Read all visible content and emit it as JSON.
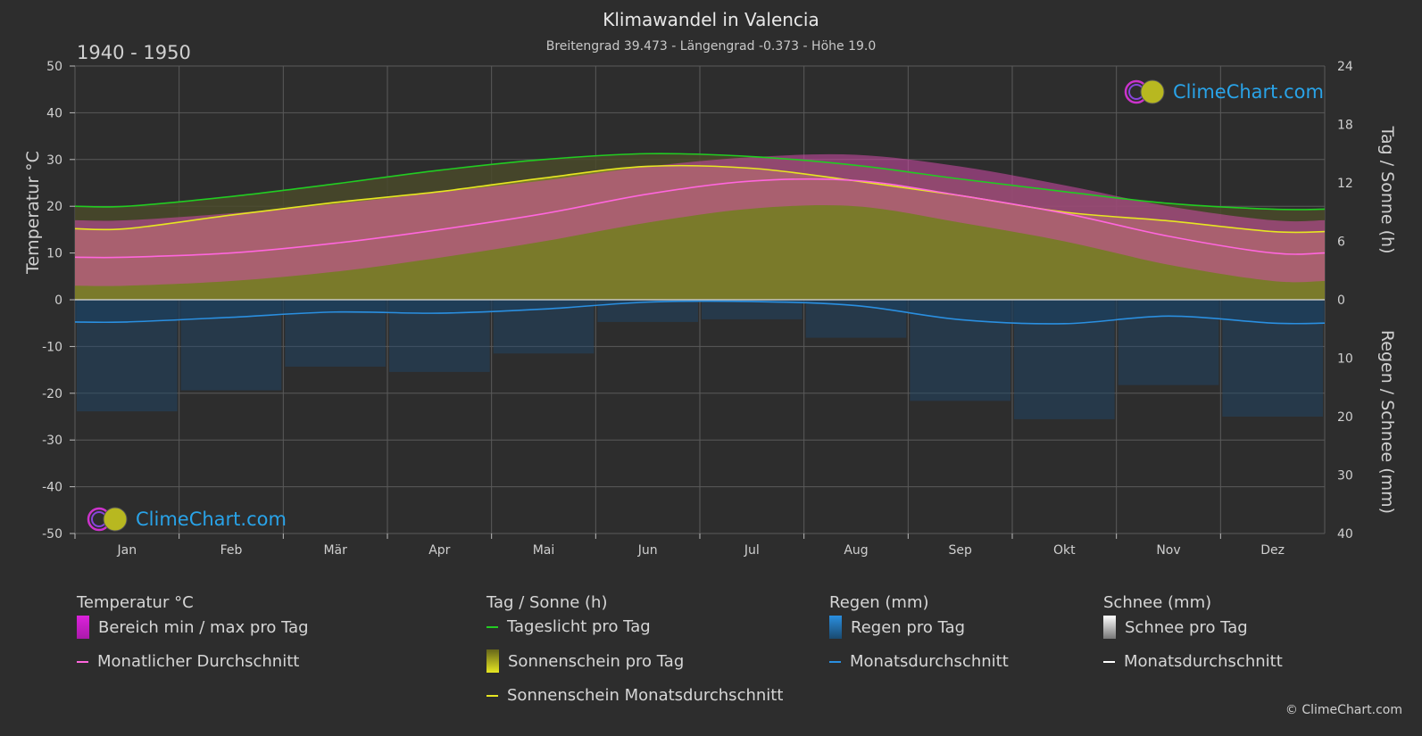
{
  "header": {
    "title": "Klimawandel in Valencia",
    "subtitle": "Breitengrad 39.473 - Längengrad -0.373 - Höhe 19.0",
    "period": "1940 - 1950"
  },
  "chart_data": {
    "type": "line",
    "categories": [
      "Jan",
      "Feb",
      "Mär",
      "Apr",
      "Mai",
      "Jun",
      "Jul",
      "Aug",
      "Sep",
      "Okt",
      "Nov",
      "Dez"
    ],
    "y_left": {
      "label": "Temperatur °C",
      "range": [
        -50,
        50
      ],
      "ticks": [
        "50",
        "40",
        "30",
        "20",
        "10",
        "0",
        "-10",
        "-20",
        "-30",
        "-40",
        "-50"
      ]
    },
    "y_right_top": {
      "label": "Tag / Sonne (h)",
      "range": [
        0,
        24
      ],
      "ticks": [
        "24",
        "18",
        "12",
        "6",
        "0"
      ]
    },
    "y_right_bottom": {
      "label": "Regen / Schnee (mm)",
      "range": [
        0,
        40
      ],
      "ticks": [
        "10",
        "20",
        "30",
        "40"
      ]
    },
    "series": [
      {
        "name": "Tageslicht pro Tag",
        "unit": "h",
        "color": "#22cc22",
        "values": [
          9.6,
          10.6,
          11.9,
          13.3,
          14.4,
          15.0,
          14.7,
          13.8,
          12.4,
          11.1,
          9.9,
          9.3
        ]
      },
      {
        "name": "Sonnenschein Monatsdurchschnitt",
        "unit": "h",
        "color": "#e6e622",
        "values": [
          7.3,
          8.7,
          10.0,
          11.1,
          12.5,
          13.7,
          13.5,
          12.2,
          10.7,
          9.0,
          8.1,
          7.0
        ]
      },
      {
        "name": "Monatlicher Durchschnitt",
        "unit": "°C",
        "color": "#ff66dd",
        "values": [
          9.1,
          10.0,
          12.1,
          15.0,
          18.4,
          22.6,
          25.4,
          25.5,
          22.3,
          18.5,
          13.6,
          10.0
        ]
      },
      {
        "name": "Tagesmaximum (oberer Bereich)",
        "unit": "°C",
        "values": [
          17.0,
          18.5,
          20.5,
          23.0,
          25.5,
          28.5,
          30.5,
          31.0,
          28.5,
          24.5,
          20.0,
          17.0
        ]
      },
      {
        "name": "Tagesminimum (unterer Bereich)",
        "unit": "°C",
        "values": [
          3.0,
          4.0,
          6.0,
          9.0,
          12.5,
          16.5,
          19.5,
          20.0,
          16.5,
          12.5,
          7.5,
          4.0
        ]
      },
      {
        "name": "Regen Monatsdurchschnitt",
        "unit": "mm",
        "color": "#2a8fe0",
        "values": [
          3.8,
          3.0,
          2.1,
          2.3,
          1.6,
          0.4,
          0.3,
          1.0,
          3.4,
          4.1,
          2.8,
          4.0
        ]
      }
    ],
    "grid": true
  },
  "legend": {
    "groups": [
      {
        "heading": "Temperatur °C",
        "items": [
          {
            "label": "Bereich min / max pro Tag",
            "kind": "box",
            "color": "#dd22dd"
          },
          {
            "label": "Monatlicher Durchschnitt",
            "kind": "line",
            "color": "#ff66dd"
          }
        ]
      },
      {
        "heading": "Tag / Sonne (h)",
        "items": [
          {
            "label": "Tageslicht pro Tag",
            "kind": "line",
            "color": "#22cc22"
          },
          {
            "label": "Sonnenschein pro Tag",
            "kind": "box",
            "color": "#c8c822"
          },
          {
            "label": "Sonnenschein Monatsdurchschnitt",
            "kind": "line",
            "color": "#e6e622"
          }
        ]
      },
      {
        "heading": "Regen (mm)",
        "items": [
          {
            "label": "Regen pro Tag",
            "kind": "box",
            "color": "#2a8fe0"
          },
          {
            "label": "Monatsdurchschnitt",
            "kind": "line",
            "color": "#2a8fe0"
          }
        ]
      },
      {
        "heading": "Schnee (mm)",
        "items": [
          {
            "label": "Schnee pro Tag",
            "kind": "box",
            "color": "#dddddd"
          },
          {
            "label": "Monatsdurchschnitt",
            "kind": "line",
            "color": "#ffffff"
          }
        ]
      }
    ]
  },
  "logo": {
    "text": "ClimeChart.com"
  },
  "copyright": "© ClimeChart.com"
}
